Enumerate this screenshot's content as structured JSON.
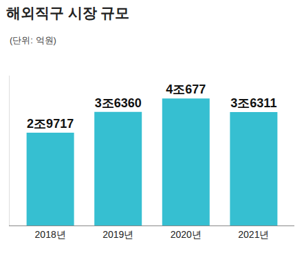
{
  "chart_data": {
    "type": "bar",
    "title": "해외직구 시장 규모",
    "subtitle": "(단위: 억원)",
    "categories": [
      "2018년",
      "2019년",
      "2020년",
      "2021년"
    ],
    "values": [
      29717,
      36360,
      40677,
      36311
    ],
    "value_labels": [
      "2조9717",
      "3조6360",
      "4조677",
      "3조6311"
    ],
    "color": "#36bfd1",
    "ylim": [
      0,
      48000
    ],
    "grid": false,
    "data_labels": true,
    "tick_labels": "x"
  }
}
